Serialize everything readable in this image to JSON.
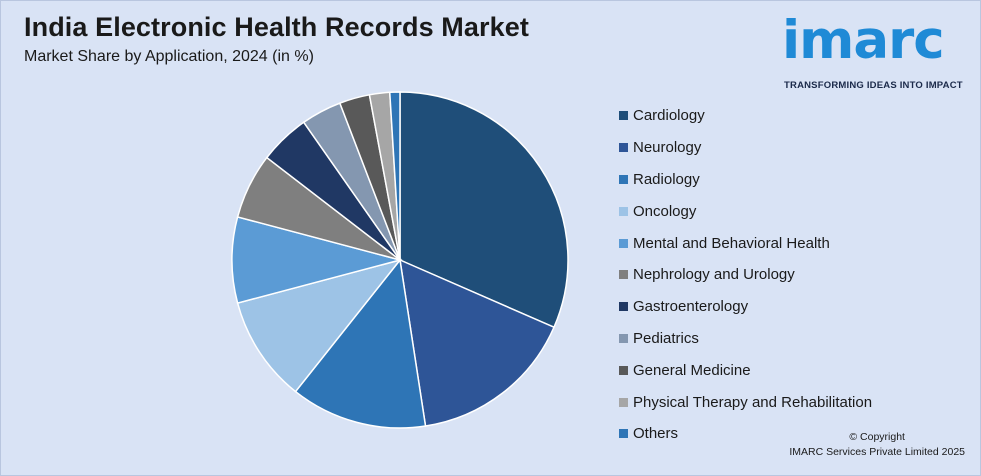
{
  "header": {
    "title": "India Electronic Health Records Market",
    "subtitle": "Market Share by Application, 2024 (in %)"
  },
  "logo": {
    "word": "imarc",
    "tagline": "TRANSFORMING IDEAS INTO IMPACT",
    "color": "#1f8ad6"
  },
  "chart_data": {
    "type": "pie",
    "title": "India Electronic Health Records Market",
    "subtitle": "Market Share by Application, 2024 (in %)",
    "legend_position": "right",
    "start_angle_deg": 0,
    "direction": "clockwise",
    "categories": [
      "Cardiology",
      "Neurology",
      "Radiology",
      "Oncology",
      "Mental and Behavioral Health",
      "Nephrology and Urology",
      "Gastroenterology",
      "Pediatrics",
      "General Medicine",
      "Physical Therapy and Rehabilitation",
      "Others"
    ],
    "values": [
      32.5,
      16.5,
      13.5,
      10.5,
      8.5,
      6.5,
      5.0,
      4.0,
      3.0,
      2.0,
      1.0
    ],
    "colors": [
      "#1f4e79",
      "#2e5597",
      "#2e75b6",
      "#9dc3e6",
      "#5b9bd5",
      "#7f7f7f",
      "#203864",
      "#8497b0",
      "#595959",
      "#a6a6a6",
      "#2e75b6"
    ]
  },
  "footer": {
    "copyright_line1": "© Copyright",
    "copyright_line2": "IMARC Services Private Limited 2025"
  }
}
